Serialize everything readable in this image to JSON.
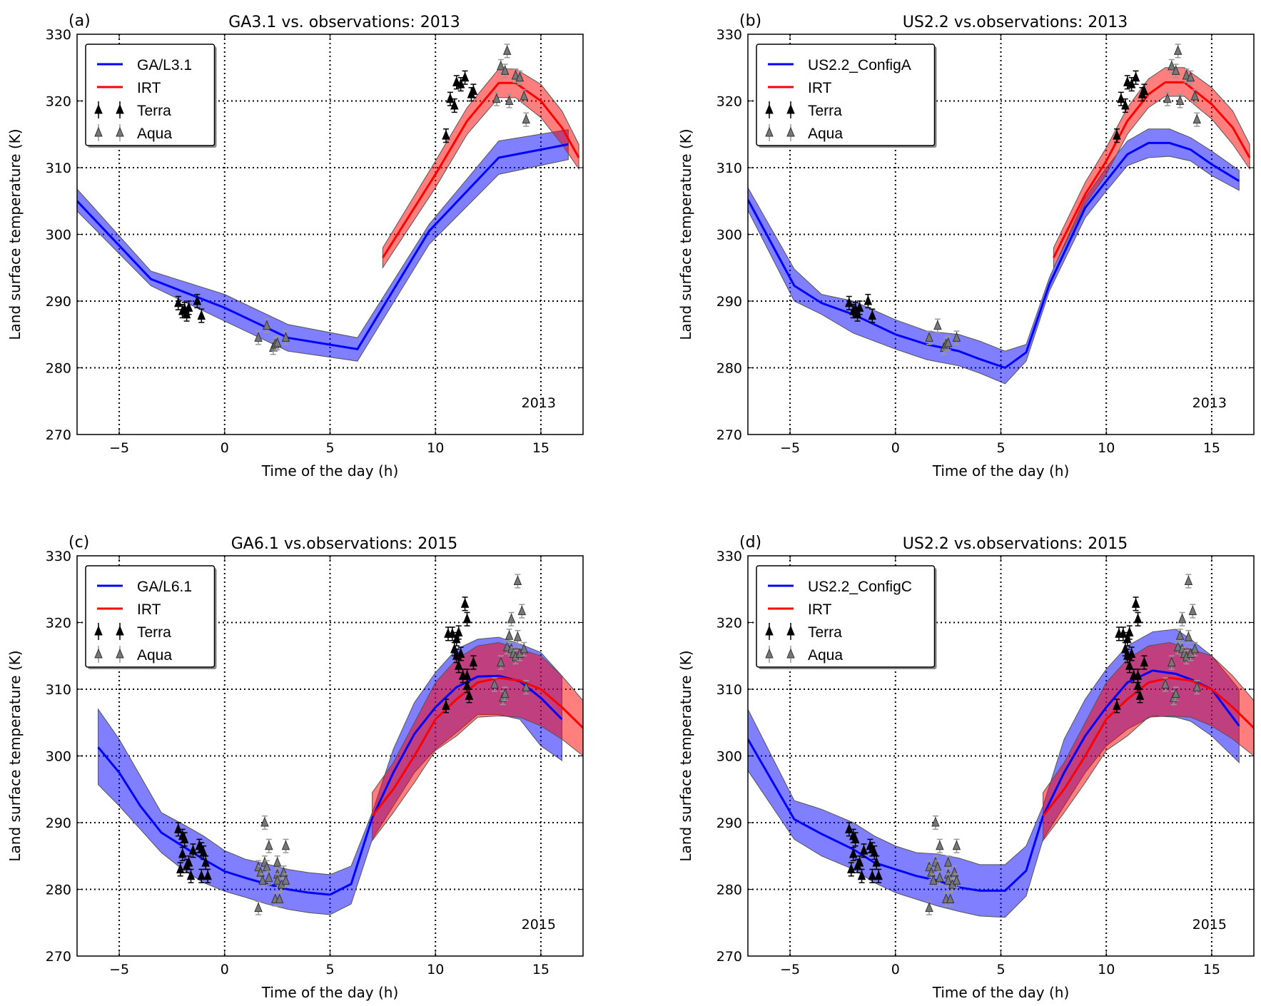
{
  "chart_data": {
    "type": "line",
    "xlim": [
      -7,
      17
    ],
    "ylim": [
      270,
      330
    ],
    "xticks": [
      -5,
      0,
      5,
      10,
      15
    ],
    "yticks": [
      270,
      280,
      290,
      300,
      310,
      320,
      330
    ],
    "grid": true,
    "xlabel": "Time of the day (h)",
    "ylabel": "Land surface temperature (K)",
    "colors": {
      "model": "#0000ff",
      "irt": "#ff0000",
      "terra": "#000000",
      "aqua": "#777777"
    },
    "panels": [
      {
        "letter": "(a)",
        "title": "GA3.1 vs. observations: 2013",
        "year": "2013",
        "obs": "2013",
        "legend": [
          "GA/L3.1",
          "IRT",
          "Terra",
          "Aqua"
        ],
        "model": {
          "x": [
            -7,
            -3.5,
            0,
            3,
            6.3,
            9.7,
            13,
            16.3
          ],
          "mean": [
            305,
            293.3,
            289,
            284.5,
            282.8,
            300.5,
            311.5,
            313.5
          ],
          "upper": [
            306.8,
            294.5,
            291,
            286.5,
            284.5,
            301.5,
            314,
            315.7
          ],
          "lower": [
            303.5,
            292.3,
            287,
            282.5,
            281,
            298.5,
            309,
            311.2
          ]
        },
        "irt": {
          "x": [
            7.5,
            10,
            11.5,
            13,
            13.8,
            15,
            16,
            16.8
          ],
          "mean": [
            296.5,
            309,
            317,
            322.7,
            322.7,
            320,
            316,
            311.5
          ],
          "upper": [
            298,
            311,
            319,
            324.8,
            324.8,
            322.5,
            318.5,
            313.5
          ],
          "lower": [
            295,
            307,
            315,
            320.5,
            320.5,
            317.5,
            313.5,
            309.8
          ]
        }
      },
      {
        "letter": "(b)",
        "title": "US2.2 vs.observations: 2013",
        "year": "2013",
        "obs": "2013",
        "legend": [
          "US2.2_ConfigA",
          "IRT",
          "Terra",
          "Aqua"
        ],
        "model": {
          "x": [
            -7,
            -4.8,
            -3.5,
            -2,
            0,
            1.5,
            3,
            4,
            5.2,
            6.2,
            7.3,
            9,
            10,
            11,
            12,
            13,
            14,
            15,
            16.3
          ],
          "mean": [
            305.2,
            292.3,
            289.7,
            288,
            285,
            283.5,
            282.5,
            281.3,
            280,
            282.3,
            292.5,
            304,
            308,
            312,
            313.7,
            313.7,
            312.7,
            310.5,
            308
          ],
          "upper": [
            307,
            294.8,
            291,
            290,
            287.2,
            285.5,
            285,
            284,
            282.5,
            283.5,
            293.5,
            305.5,
            310,
            314,
            315.8,
            315.8,
            314.5,
            312.5,
            309.6
          ],
          "lower": [
            303.6,
            290,
            288,
            285.2,
            282.8,
            281.2,
            280.3,
            279.2,
            277.6,
            281,
            291.5,
            302.5,
            306.5,
            310.3,
            311.5,
            311.7,
            311,
            308.8,
            306.6
          ]
        },
        "irt": {
          "x": [
            7.5,
            9,
            10,
            11,
            12,
            12.8,
            13.7,
            15,
            16,
            16.8
          ],
          "mean": [
            296.5,
            306,
            311,
            317,
            321,
            322.8,
            322.8,
            319.5,
            316,
            311.5
          ],
          "upper": [
            298,
            307.8,
            313,
            319,
            323.3,
            325,
            325,
            322,
            318.5,
            313.5
          ],
          "lower": [
            295,
            304.5,
            309,
            315,
            319,
            320.7,
            320.7,
            317.3,
            313.5,
            309.8
          ]
        }
      },
      {
        "letter": "(c)",
        "title": "GA6.1 vs.observations: 2015",
        "year": "2015",
        "obs": "2015",
        "legend": [
          "GA/L6.1",
          "IRT",
          "Terra",
          "Aqua"
        ],
        "model": {
          "x": [
            -6,
            -5,
            -4,
            -3,
            -2,
            -1,
            0,
            1,
            2,
            3,
            4,
            5,
            6,
            7,
            8,
            9,
            10,
            11,
            12,
            13,
            14,
            15,
            16
          ],
          "mean": [
            301.3,
            297.5,
            292.5,
            288.5,
            286.5,
            284.5,
            282.7,
            281.7,
            280.8,
            280,
            279.5,
            279.2,
            280.8,
            290.7,
            297.5,
            303.3,
            307.3,
            310.3,
            311.9,
            312,
            311.2,
            308.7,
            305.5
          ],
          "upper": [
            307,
            302.5,
            297,
            291.5,
            289.8,
            288,
            285.8,
            284.5,
            283.8,
            283,
            282.5,
            282.2,
            283.5,
            291.5,
            301,
            308,
            312.5,
            316,
            317.5,
            317.8,
            316.8,
            315.5,
            312
          ],
          "lower": [
            295.7,
            292.5,
            289,
            285.5,
            283,
            281,
            279.7,
            278.8,
            277.8,
            277,
            276.5,
            276.2,
            277.8,
            287.5,
            292.5,
            297.5,
            301,
            303.5,
            306.2,
            306.2,
            305.5,
            301.5,
            299.3
          ]
        },
        "irt": {
          "x": [
            7,
            8,
            9,
            10,
            11,
            12,
            13,
            14,
            15,
            16,
            17
          ],
          "mean": [
            291,
            295,
            300,
            305.5,
            308.5,
            311,
            311.7,
            311.3,
            310,
            307.3,
            304.2
          ],
          "upper": [
            294.5,
            299,
            305,
            311,
            314.5,
            316.5,
            317,
            316,
            315,
            312,
            308.3
          ],
          "lower": [
            287.3,
            291.5,
            296,
            300.8,
            303,
            305.8,
            306,
            305.8,
            304.5,
            302.5,
            300
          ]
        }
      },
      {
        "letter": "(d)",
        "title": "US2.2 vs.observations: 2015",
        "year": "2015",
        "obs": "2015",
        "legend": [
          "US2.2_ConfigC",
          "IRT",
          "Terra",
          "Aqua"
        ],
        "model": {
          "x": [
            -7,
            -4.8,
            -3.5,
            -2,
            -1,
            0,
            1,
            2,
            3,
            4,
            5.2,
            6.2,
            7,
            8,
            9,
            10,
            11,
            12.2,
            13.3,
            14,
            15,
            16.3
          ],
          "mean": [
            302.5,
            290.5,
            288.3,
            286,
            284,
            283,
            282,
            281.3,
            280.3,
            279.8,
            279.8,
            282.8,
            291,
            297.5,
            303,
            307.3,
            311,
            312.8,
            312.3,
            311.5,
            310,
            304.5
          ],
          "upper": [
            307,
            293.3,
            292,
            290,
            288,
            286.5,
            285.5,
            285.3,
            284.7,
            283.7,
            283.7,
            286.5,
            292.5,
            302.5,
            308.5,
            313,
            316.5,
            318.6,
            319,
            317.5,
            315,
            310
          ],
          "lower": [
            297.8,
            287.5,
            285,
            283,
            281,
            279.5,
            278.5,
            277.5,
            276.7,
            276,
            275.8,
            279,
            287.5,
            292.5,
            297.5,
            301.5,
            304,
            306,
            305.8,
            305.2,
            303,
            299
          ]
        },
        "irt": {
          "x": [
            7,
            8,
            9,
            10,
            11,
            12,
            13,
            14,
            15,
            16,
            17
          ],
          "mean": [
            291,
            295,
            300,
            305.5,
            308.5,
            311,
            311.7,
            311.3,
            310,
            307.3,
            304.2
          ],
          "upper": [
            294.5,
            299,
            305,
            311,
            314.5,
            316.5,
            317,
            316,
            315,
            312,
            308.3
          ],
          "lower": [
            287.3,
            291.5,
            296,
            300.8,
            303,
            305.8,
            306,
            305.8,
            304.5,
            302.5,
            300
          ]
        }
      }
    ],
    "observations": {
      "2013": {
        "error": 1,
        "terra": [
          [
            -2.2,
            289.7
          ],
          [
            -2.0,
            288.5
          ],
          [
            -1.9,
            288.8
          ],
          [
            -1.8,
            288
          ],
          [
            -1.7,
            289
          ],
          [
            -1.3,
            290
          ],
          [
            -1.1,
            287.8
          ],
          [
            10.5,
            314.8
          ],
          [
            10.7,
            320.3
          ],
          [
            10.9,
            319.3
          ],
          [
            11.0,
            322.8
          ],
          [
            11.2,
            322.5
          ],
          [
            11.4,
            323.5
          ],
          [
            11.7,
            321
          ],
          [
            11.8,
            321.5
          ]
        ],
        "aqua": [
          [
            1.6,
            284.5
          ],
          [
            2.0,
            286.3
          ],
          [
            2.3,
            283
          ],
          [
            2.4,
            283.5
          ],
          [
            2.5,
            283.7
          ],
          [
            2.9,
            284.5
          ],
          [
            12.9,
            320.3
          ],
          [
            13.1,
            325.2
          ],
          [
            13.3,
            324.5
          ],
          [
            13.4,
            327.5
          ],
          [
            13.5,
            320
          ],
          [
            13.8,
            323.8
          ],
          [
            14.0,
            323.5
          ],
          [
            14.2,
            320.7
          ],
          [
            14.3,
            317.2
          ]
        ]
      },
      "2015": {
        "error": 1,
        "terra": [
          [
            -2.2,
            289
          ],
          [
            -2.0,
            288
          ],
          [
            -1.9,
            287.5
          ],
          [
            -2.1,
            283
          ],
          [
            -2.0,
            285.3
          ],
          [
            -1.8,
            283.5
          ],
          [
            -1.7,
            284
          ],
          [
            -1.6,
            282
          ],
          [
            -1.5,
            285.8
          ],
          [
            -1.2,
            286.5
          ],
          [
            -1.1,
            286
          ],
          [
            -1.0,
            285.5
          ],
          [
            -1.1,
            282
          ],
          [
            -0.9,
            284
          ],
          [
            -0.8,
            282
          ],
          [
            10.5,
            307.5
          ],
          [
            10.6,
            318.3
          ],
          [
            10.8,
            318.3
          ],
          [
            10.9,
            316
          ],
          [
            11.0,
            317.5
          ],
          [
            11.1,
            318.5
          ],
          [
            11.0,
            315
          ],
          [
            11.1,
            313.5
          ],
          [
            11.2,
            315.3
          ],
          [
            11.3,
            312
          ],
          [
            11.4,
            322.8
          ],
          [
            11.5,
            320.5
          ],
          [
            11.5,
            312
          ],
          [
            11.5,
            310.5
          ],
          [
            11.6,
            309
          ],
          [
            11.8,
            314
          ]
        ],
        "aqua": [
          [
            1.6,
            277.2
          ],
          [
            1.6,
            283.3
          ],
          [
            1.7,
            282.5
          ],
          [
            1.8,
            281.3
          ],
          [
            1.9,
            284
          ],
          [
            1.9,
            290
          ],
          [
            2.0,
            283.3
          ],
          [
            2.1,
            286.5
          ],
          [
            2.1,
            281.7
          ],
          [
            2.4,
            278.5
          ],
          [
            2.5,
            284
          ],
          [
            2.5,
            282.2
          ],
          [
            2.5,
            281.3
          ],
          [
            2.6,
            278.5
          ],
          [
            2.7,
            280.7
          ],
          [
            2.8,
            282.5
          ],
          [
            2.9,
            286.5
          ],
          [
            2.9,
            281.3
          ],
          [
            12.8,
            310.7
          ],
          [
            13.1,
            314
          ],
          [
            13.2,
            308.7
          ],
          [
            13.3,
            309.3
          ],
          [
            13.4,
            316.3
          ],
          [
            13.5,
            318
          ],
          [
            13.6,
            320.5
          ],
          [
            13.6,
            316
          ],
          [
            13.7,
            315.3
          ],
          [
            13.8,
            314.8
          ],
          [
            13.9,
            317.8
          ],
          [
            13.9,
            326.2
          ],
          [
            14.0,
            315.3
          ],
          [
            14.1,
            321.7
          ],
          [
            14.2,
            316
          ],
          [
            14.3,
            310.3
          ]
        ]
      }
    }
  }
}
